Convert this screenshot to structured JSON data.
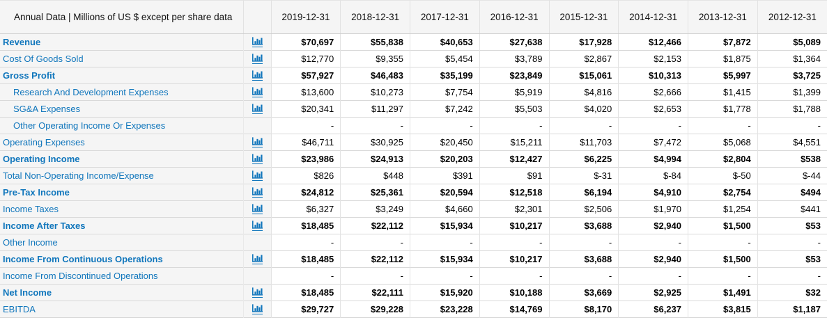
{
  "header": {
    "title": "Annual Data | Millions of US $ except per share data",
    "date_columns": [
      "2019-12-31",
      "2018-12-31",
      "2017-12-31",
      "2016-12-31",
      "2015-12-31",
      "2014-12-31",
      "2013-12-31",
      "2012-12-31"
    ]
  },
  "icon": {
    "name": "bar-chart-icon",
    "color": "#1076bc"
  },
  "colors": {
    "link_blue": "#1076bc",
    "header_bg": "#f5f5f5",
    "row_line": "#d9d9d9",
    "value_text": "#000000"
  },
  "rows": [
    {
      "label": "Revenue",
      "indent": false,
      "label_bold": true,
      "values_bold": true,
      "has_chart_icon": true,
      "values": [
        "$70,697",
        "$55,838",
        "$40,653",
        "$27,638",
        "$17,928",
        "$12,466",
        "$7,872",
        "$5,089"
      ]
    },
    {
      "label": "Cost Of Goods Sold",
      "indent": false,
      "label_bold": false,
      "values_bold": false,
      "has_chart_icon": true,
      "values": [
        "$12,770",
        "$9,355",
        "$5,454",
        "$3,789",
        "$2,867",
        "$2,153",
        "$1,875",
        "$1,364"
      ]
    },
    {
      "label": "Gross Profit",
      "indent": false,
      "label_bold": true,
      "values_bold": true,
      "has_chart_icon": true,
      "values": [
        "$57,927",
        "$46,483",
        "$35,199",
        "$23,849",
        "$15,061",
        "$10,313",
        "$5,997",
        "$3,725"
      ]
    },
    {
      "label": "Research And Development Expenses",
      "indent": true,
      "label_bold": false,
      "values_bold": false,
      "has_chart_icon": true,
      "values": [
        "$13,600",
        "$10,273",
        "$7,754",
        "$5,919",
        "$4,816",
        "$2,666",
        "$1,415",
        "$1,399"
      ]
    },
    {
      "label": "SG&A Expenses",
      "indent": true,
      "label_bold": false,
      "values_bold": false,
      "has_chart_icon": true,
      "values": [
        "$20,341",
        "$11,297",
        "$7,242",
        "$5,503",
        "$4,020",
        "$2,653",
        "$1,778",
        "$1,788"
      ]
    },
    {
      "label": "Other Operating Income Or Expenses",
      "indent": true,
      "label_bold": false,
      "values_bold": false,
      "has_chart_icon": false,
      "values": [
        "-",
        "-",
        "-",
        "-",
        "-",
        "-",
        "-",
        "-"
      ]
    },
    {
      "label": "Operating Expenses",
      "indent": false,
      "label_bold": false,
      "values_bold": false,
      "has_chart_icon": true,
      "values": [
        "$46,711",
        "$30,925",
        "$20,450",
        "$15,211",
        "$11,703",
        "$7,472",
        "$5,068",
        "$4,551"
      ]
    },
    {
      "label": "Operating Income",
      "indent": false,
      "label_bold": true,
      "values_bold": true,
      "has_chart_icon": true,
      "values": [
        "$23,986",
        "$24,913",
        "$20,203",
        "$12,427",
        "$6,225",
        "$4,994",
        "$2,804",
        "$538"
      ]
    },
    {
      "label": "Total Non-Operating Income/Expense",
      "indent": false,
      "label_bold": false,
      "values_bold": false,
      "has_chart_icon": true,
      "values": [
        "$826",
        "$448",
        "$391",
        "$91",
        "$-31",
        "$-84",
        "$-50",
        "$-44"
      ]
    },
    {
      "label": "Pre-Tax Income",
      "indent": false,
      "label_bold": true,
      "values_bold": true,
      "has_chart_icon": true,
      "values": [
        "$24,812",
        "$25,361",
        "$20,594",
        "$12,518",
        "$6,194",
        "$4,910",
        "$2,754",
        "$494"
      ]
    },
    {
      "label": "Income Taxes",
      "indent": false,
      "label_bold": false,
      "values_bold": false,
      "has_chart_icon": true,
      "values": [
        "$6,327",
        "$3,249",
        "$4,660",
        "$2,301",
        "$2,506",
        "$1,970",
        "$1,254",
        "$441"
      ]
    },
    {
      "label": "Income After Taxes",
      "indent": false,
      "label_bold": true,
      "values_bold": true,
      "has_chart_icon": true,
      "values": [
        "$18,485",
        "$22,112",
        "$15,934",
        "$10,217",
        "$3,688",
        "$2,940",
        "$1,500",
        "$53"
      ]
    },
    {
      "label": "Other Income",
      "indent": false,
      "label_bold": false,
      "values_bold": false,
      "has_chart_icon": false,
      "values": [
        "-",
        "-",
        "-",
        "-",
        "-",
        "-",
        "-",
        "-"
      ]
    },
    {
      "label": "Income From Continuous Operations",
      "indent": false,
      "label_bold": true,
      "values_bold": true,
      "has_chart_icon": true,
      "values": [
        "$18,485",
        "$22,112",
        "$15,934",
        "$10,217",
        "$3,688",
        "$2,940",
        "$1,500",
        "$53"
      ]
    },
    {
      "label": "Income From Discontinued Operations",
      "indent": false,
      "label_bold": false,
      "values_bold": false,
      "has_chart_icon": false,
      "values": [
        "-",
        "-",
        "-",
        "-",
        "-",
        "-",
        "-",
        "-"
      ]
    },
    {
      "label": "Net Income",
      "indent": false,
      "label_bold": true,
      "values_bold": true,
      "has_chart_icon": true,
      "values": [
        "$18,485",
        "$22,111",
        "$15,920",
        "$10,188",
        "$3,669",
        "$2,925",
        "$1,491",
        "$32"
      ]
    },
    {
      "label": "EBITDA",
      "indent": false,
      "label_bold": false,
      "values_bold": true,
      "has_chart_icon": true,
      "values": [
        "$29,727",
        "$29,228",
        "$23,228",
        "$14,769",
        "$8,170",
        "$6,237",
        "$3,815",
        "$1,187"
      ]
    }
  ]
}
